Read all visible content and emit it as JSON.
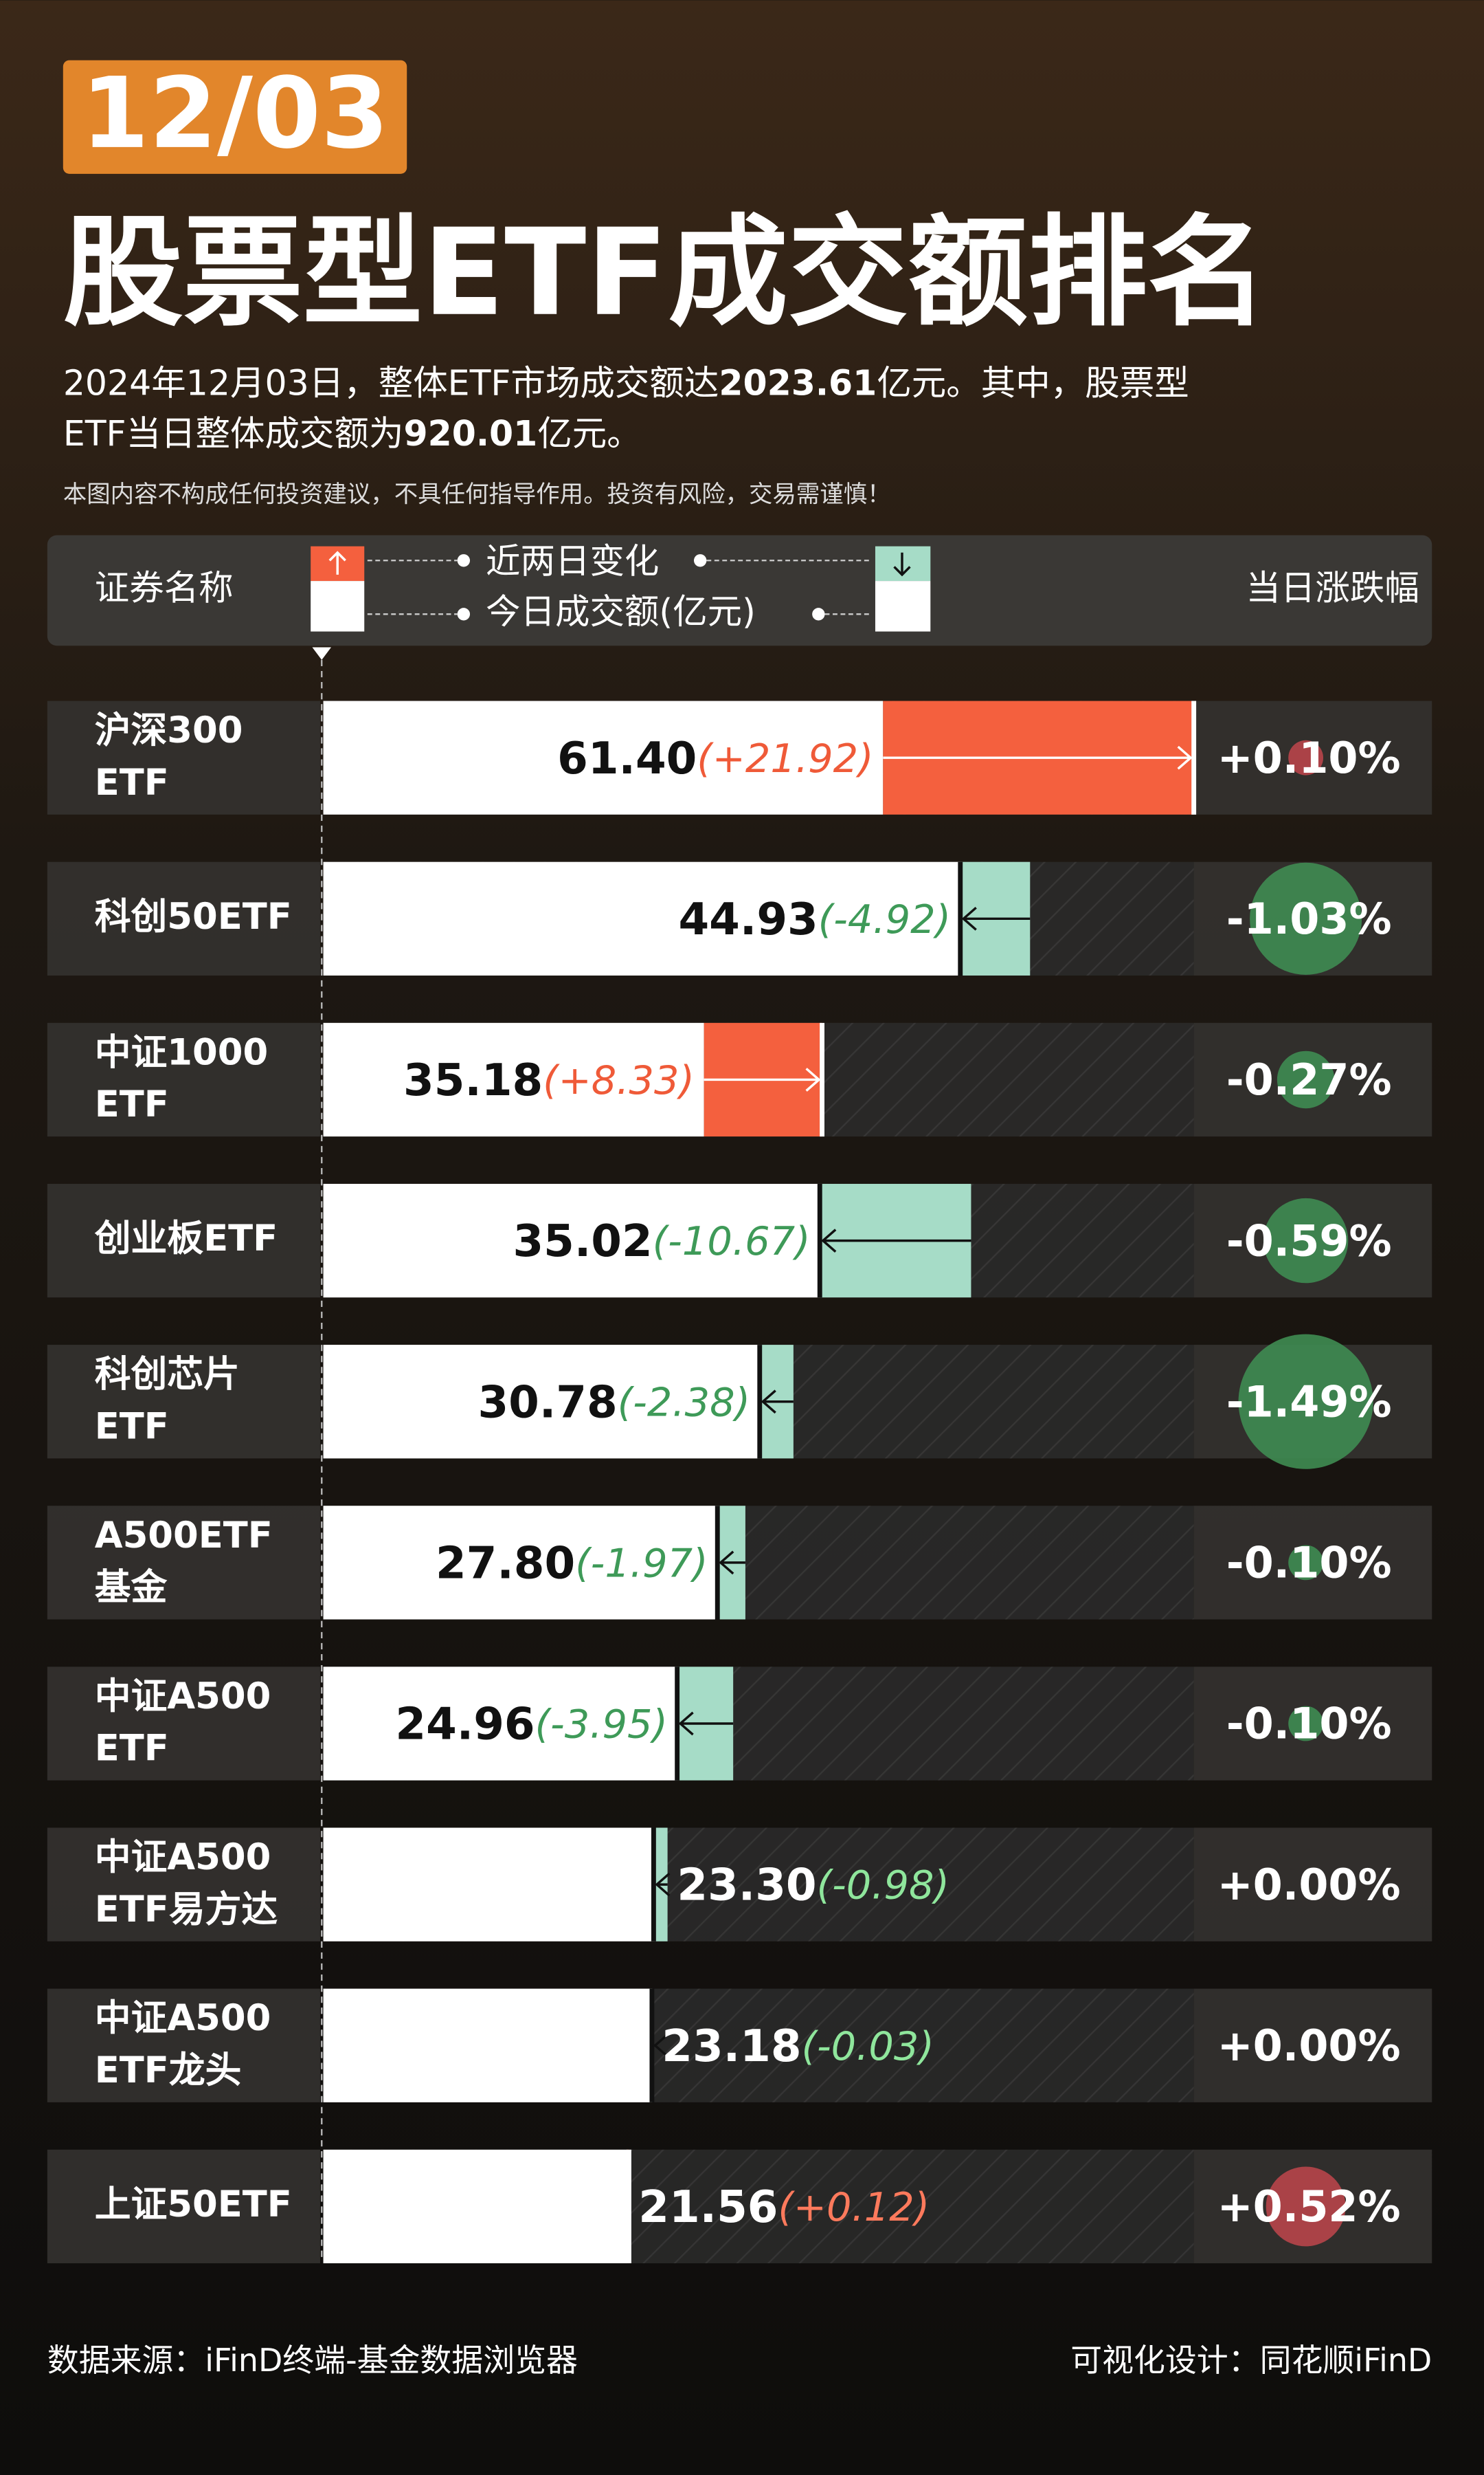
{
  "chart_data": {
    "type": "bar",
    "date": "12/03",
    "title": "股票型ETF成交额排名",
    "subtitle": [
      "2024年12月03日，整体ETF市场成交额达",
      "2023.61",
      "亿元。其中，股票型",
      "ETF当日整体成交额为",
      "920.01",
      "亿元。"
    ],
    "note": "本图内容不构成任何投资建议，不具任何指导作用。投资有风险，交易需谨慎！",
    "category_label": "证券名称",
    "categories": [
      [
        "沪深300",
        "ETF"
      ],
      [
        "科创50ETF"
      ],
      [
        "中证1000",
        "ETF"
      ],
      [
        "创业板ETF"
      ],
      [
        "科创芯片",
        "ETF"
      ],
      [
        "A500ETF",
        "基金"
      ],
      [
        "中证A500",
        "ETF"
      ],
      [
        "中证A500",
        "ETF易方达"
      ],
      [
        "中证A500",
        "ETF龙头"
      ],
      [
        "上证50ETF"
      ]
    ],
    "series": [
      {
        "name": "今日成交额(亿元)",
        "color": "#ffffff",
        "values": [
          61.4,
          44.93,
          35.18,
          35.02,
          30.78,
          27.8,
          24.96,
          23.3,
          23.18,
          21.56
        ],
        "value_labels": [
          "61.40",
          "44.93",
          "35.18",
          "35.02",
          "30.78",
          "27.80",
          "24.96",
          "23.30",
          "23.18",
          "21.56"
        ]
      },
      {
        "name": "近两日变化",
        "values": [
          21.92,
          -4.92,
          8.33,
          -10.67,
          -2.38,
          -1.97,
          -3.95,
          -0.98,
          -0.03,
          0.12
        ],
        "value_labels": [
          "(+21.92)",
          "(-4.92)",
          "(+8.33)",
          "(-10.67)",
          "(-2.38)",
          "(-1.97)",
          "(-3.95)",
          "(-0.98)",
          "(-0.03)",
          "(+0.12)"
        ]
      },
      {
        "name": "当日涨跌幅",
        "values": [
          0.1,
          -1.03,
          -0.27,
          -0.59,
          -1.49,
          -0.1,
          -0.1,
          0,
          0,
          0.52
        ],
        "value_labels": [
          "+0.10%",
          "-1.03%",
          "-0.27%",
          "-0.59%",
          "-1.49%",
          "-0.10%",
          "-0.10%",
          "+0.00%",
          "+0.00%",
          "+0.52%"
        ]
      }
    ],
    "up_color": "#f4603e",
    "down_color": "#a6dcc7",
    "circle_up_color": "#b8454a",
    "circle_down_color": "#3f8c52",
    "source": "数据来源：iFinD终端-基金数据浏览器",
    "credit": "可视化设计：同花顺iFinD"
  }
}
